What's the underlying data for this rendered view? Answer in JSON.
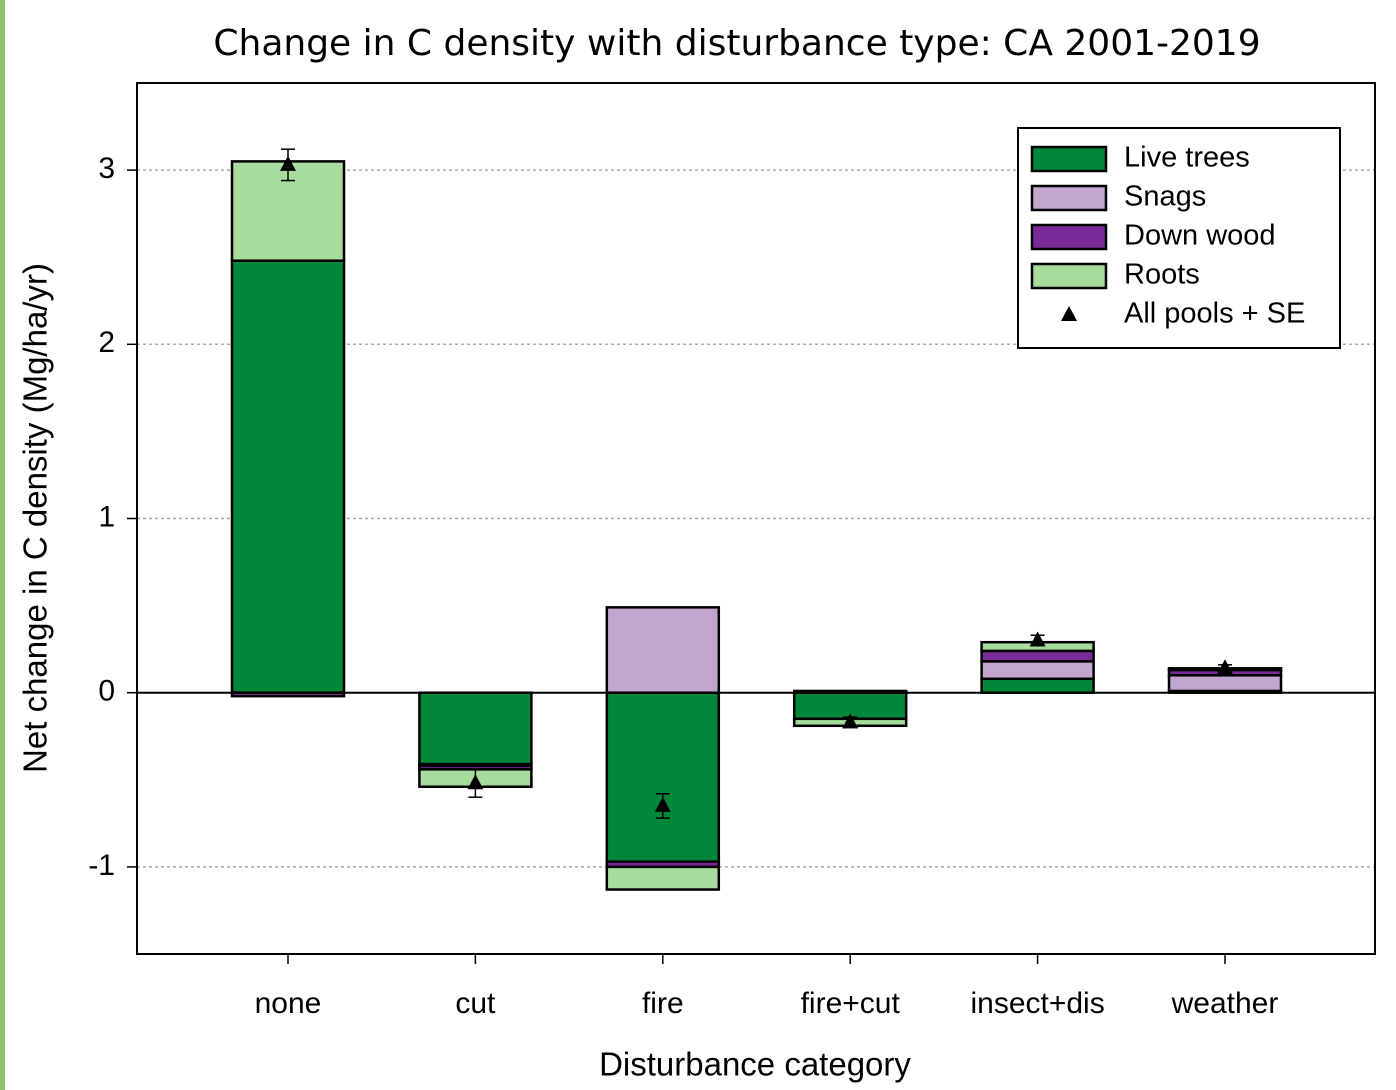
{
  "chart_data": {
    "type": "stacked-bar",
    "title": "Change in C density with disturbance type: CA 2001-2019",
    "x_label": "Disturbance category",
    "y_label": "Net change in C density (Mg/ha/yr)",
    "categories": [
      "none",
      "cut",
      "fire",
      "fire+cut",
      "insect+dis",
      "weather"
    ],
    "series": [
      {
        "name": "Live trees",
        "color": "#00873a",
        "values": [
          2.48,
          -0.41,
          -0.97,
          -0.15,
          0.08,
          0.01
        ]
      },
      {
        "name": "Snags",
        "color": "#c3a6cf",
        "values": [
          0,
          -0.01,
          0.49,
          0.01,
          0.1,
          0.09
        ]
      },
      {
        "name": "Down wood",
        "color": "#7b2a9a",
        "values": [
          -0.02,
          -0.02,
          -0.03,
          0,
          0.06,
          0.03
        ]
      },
      {
        "name": "Roots",
        "color": "#a6dc9c",
        "values": [
          0.57,
          -0.1,
          -0.13,
          -0.04,
          0.05,
          0.01
        ]
      }
    ],
    "markers": {
      "name": "All pools + SE",
      "color": "#000000",
      "values": [
        3.03,
        -0.52,
        -0.65,
        -0.17,
        0.3,
        0.14
      ],
      "errors": [
        0.09,
        0.08,
        0.07,
        0.03,
        0.03,
        0.02
      ]
    },
    "ylim": [
      -1.5,
      3.5
    ],
    "yticks": [
      -1,
      0,
      1,
      2,
      3
    ],
    "grid": true,
    "legend": "upper-right"
  }
}
